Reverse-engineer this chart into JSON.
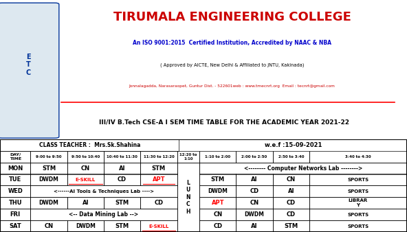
{
  "college_name": "TIRUMALA ENGINEERING COLLEGE",
  "iso_line": "An ISO 9001:2015  Certified Institution, Accredited by NAAC & NBA",
  "approved_line": "( Approved by AICTE, New Delhi & Affiliated to JNTU, Kakinada)",
  "address_line": "Jonnalagadda, Narasaraopet, Guntur Dist. - 522601web : www.tmecnrt.org  Email : tecnrt@gmail.com",
  "title_line": "III/IV B.Tech CSE-A I SEM TIME TABLE FOR THE ACADEMIC YEAR 2021-22",
  "class_teacher": "CLASS TEACHER :  Mrs.Sk.Shahina",
  "wef": "w.e.f :15-09-2021",
  "college_color": "#cc0000",
  "iso_color": "#0000cc",
  "approved_color": "#000000",
  "address_color": "#cc0000",
  "title_color": "#000000",
  "time_slots": [
    "9:00 to 9:50",
    "9:50 to 10:40",
    "10:40 to 11:30",
    "11:30 to 12:20",
    "12:20 to\n1:10",
    "1:10 to 2:00",
    "2:00 to 2:50",
    "2:50 to 3:40",
    "3:40 to 4:30"
  ],
  "bg_color": "#ffffff",
  "col_starts": [
    0.0,
    0.075,
    0.165,
    0.255,
    0.345,
    0.435,
    0.49,
    0.58,
    0.67,
    0.76,
    1.0
  ]
}
